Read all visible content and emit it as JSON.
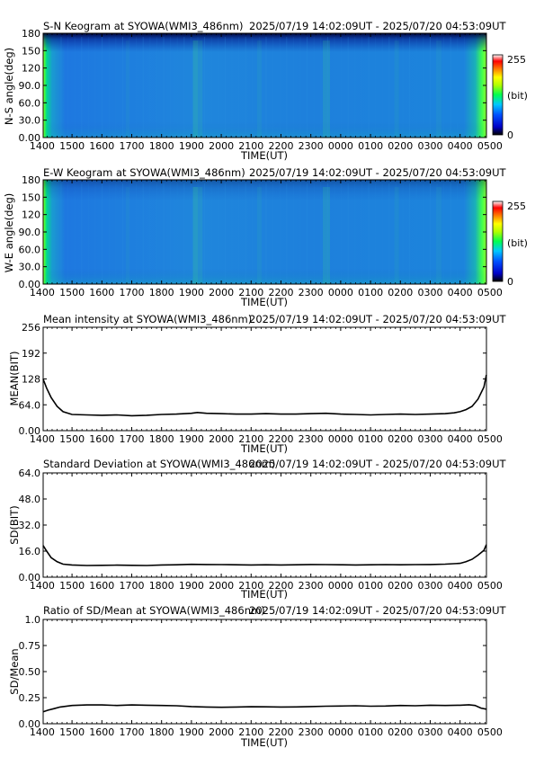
{
  "chart_data": [
    {
      "type": "heatmap",
      "title": "S-N Keogram at SYOWA(WMI3_486nm)",
      "time_range": "2025/07/19 14:02:09UT - 2025/07/20 04:53:09UT",
      "xlabel": "TIME(UT)",
      "ylabel": "N-S angle(deg)",
      "x_ticks": [
        "1400",
        "1500",
        "1600",
        "1700",
        "1800",
        "1900",
        "2000",
        "2100",
        "2200",
        "2300",
        "0000",
        "0100",
        "0200",
        "0300",
        "0400",
        "0500"
      ],
      "y_ticks": [
        "0.00",
        "30.0",
        "60.0",
        "90.0",
        "120",
        "150",
        "180"
      ],
      "ylim": [
        0,
        180
      ],
      "colorbar": {
        "min_label": "0",
        "max_label": "255",
        "unit_label": "(bit)"
      },
      "colors": [
        "#000000",
        "#0000c8",
        "#0040ff",
        "#00c0ff",
        "#00ff40",
        "#c0ff00",
        "#ffff00",
        "#ff8000",
        "#ff0000",
        "#ffffff"
      ]
    },
    {
      "type": "heatmap",
      "title": "E-W Keogram at SYOWA(WMI3_486nm)",
      "time_range": "2025/07/19 14:02:09UT - 2025/07/20 04:53:09UT",
      "xlabel": "TIME(UT)",
      "ylabel": "W-E angle(deg)",
      "x_ticks": [
        "1400",
        "1500",
        "1600",
        "1700",
        "1800",
        "1900",
        "2000",
        "2100",
        "2200",
        "2300",
        "0000",
        "0100",
        "0200",
        "0300",
        "0400",
        "0500"
      ],
      "y_ticks": [
        "0.00",
        "30.0",
        "60.0",
        "90.0",
        "120",
        "150",
        "180"
      ],
      "ylim": [
        0,
        180
      ],
      "colorbar": {
        "min_label": "0",
        "max_label": "255",
        "unit_label": "(bit)"
      }
    },
    {
      "type": "line",
      "title": "Mean intensity at SYOWA(WMI3_486nm)",
      "time_range": "2025/07/19 14:02:09UT - 2025/07/20 04:53:09UT",
      "xlabel": "TIME(UT)",
      "ylabel": "MEAN(BIT)",
      "x_ticks": [
        "1400",
        "1500",
        "1600",
        "1700",
        "1800",
        "1900",
        "2000",
        "2100",
        "2200",
        "2300",
        "0000",
        "0100",
        "0200",
        "0300",
        "0400",
        "0500"
      ],
      "y_ticks": [
        "0.00",
        "64.0",
        "128",
        "192",
        "256"
      ],
      "ylim": [
        0,
        256
      ],
      "xlim_hours": [
        14,
        29
      ],
      "x": [
        14.03,
        14.15,
        14.3,
        14.5,
        14.7,
        15.0,
        15.5,
        16.0,
        16.5,
        17.0,
        17.5,
        18.0,
        18.5,
        19.0,
        19.2,
        19.5,
        20.0,
        20.5,
        21.0,
        21.5,
        22.0,
        22.5,
        23.0,
        23.5,
        24.0,
        24.5,
        25.0,
        25.5,
        26.0,
        26.5,
        27.0,
        27.5,
        27.8,
        28.0,
        28.2,
        28.4,
        28.6,
        28.8,
        28.88
      ],
      "series": [
        {
          "values": [
            128,
            105,
            82,
            60,
            47,
            40,
            39,
            38,
            39,
            37,
            38,
            40,
            41,
            43,
            45,
            43,
            42,
            41,
            41,
            42,
            41,
            41,
            42,
            43,
            41,
            40,
            39,
            40,
            41,
            40,
            41,
            42,
            44,
            47,
            52,
            60,
            78,
            108,
            138
          ]
        }
      ]
    },
    {
      "type": "line",
      "title": "Standard Deviation at SYOWA(WMI3_486nm)",
      "time_range": "2025/07/19 14:02:09UT - 2025/07/20 04:53:09UT",
      "xlabel": "TIME(UT)",
      "ylabel": "SD(BIT)",
      "x_ticks": [
        "1400",
        "1500",
        "1600",
        "1700",
        "1800",
        "1900",
        "2000",
        "2100",
        "2200",
        "2300",
        "0000",
        "0100",
        "0200",
        "0300",
        "0400",
        "0500"
      ],
      "y_ticks": [
        "0.00",
        "16.0",
        "32.0",
        "48.0",
        "64.0"
      ],
      "ylim": [
        0,
        64
      ],
      "xlim_hours": [
        14,
        29
      ],
      "x": [
        14.03,
        14.15,
        14.3,
        14.5,
        14.7,
        15.0,
        15.5,
        16.0,
        16.5,
        17.0,
        17.5,
        18.0,
        18.5,
        19.0,
        19.5,
        20.0,
        20.5,
        21.0,
        21.5,
        22.0,
        22.5,
        23.0,
        23.5,
        24.0,
        24.5,
        25.0,
        25.5,
        26.0,
        26.5,
        27.0,
        27.5,
        28.0,
        28.2,
        28.4,
        28.6,
        28.8,
        28.88
      ],
      "series": [
        {
          "values": [
            19.5,
            16,
            12,
            9.5,
            8,
            7.5,
            7.2,
            7.3,
            7.4,
            7.3,
            7.2,
            7.5,
            7.6,
            7.9,
            7.8,
            7.7,
            7.6,
            7.5,
            7.6,
            7.5,
            7.6,
            7.8,
            7.7,
            7.6,
            7.5,
            7.6,
            7.7,
            7.6,
            7.7,
            7.8,
            8.0,
            8.5,
            9.5,
            11,
            13.5,
            16.5,
            20
          ]
        }
      ]
    },
    {
      "type": "line",
      "title": "Ratio of SD/Mean at SYOWA(WMI3_486nm)",
      "time_range": "2025/07/19 14:02:09UT - 2025/07/20 04:53:09UT",
      "xlabel": "TIME(UT)",
      "ylabel": "SD/Mean",
      "x_ticks": [
        "1400",
        "1500",
        "1600",
        "1700",
        "1800",
        "1900",
        "2000",
        "2100",
        "2200",
        "2300",
        "0000",
        "0100",
        "0200",
        "0300",
        "0400",
        "0500"
      ],
      "y_ticks": [
        "0.00",
        "0.25",
        "0.50",
        "0.75",
        "1.0"
      ],
      "ylim": [
        0,
        1
      ],
      "xlim_hours": [
        14,
        29
      ],
      "x": [
        14.03,
        14.2,
        14.4,
        14.6,
        15.0,
        15.5,
        16.0,
        16.5,
        17.0,
        17.5,
        18.0,
        18.5,
        19.0,
        19.5,
        20.0,
        20.5,
        21.0,
        21.5,
        22.0,
        22.5,
        23.0,
        23.5,
        24.0,
        24.5,
        25.0,
        25.5,
        26.0,
        26.5,
        27.0,
        27.5,
        28.0,
        28.3,
        28.5,
        28.7,
        28.88
      ],
      "series": [
        {
          "values": [
            0.115,
            0.13,
            0.145,
            0.16,
            0.175,
            0.18,
            0.18,
            0.175,
            0.18,
            0.178,
            0.175,
            0.172,
            0.165,
            0.16,
            0.158,
            0.16,
            0.163,
            0.162,
            0.16,
            0.161,
            0.165,
            0.168,
            0.17,
            0.172,
            0.168,
            0.17,
            0.175,
            0.172,
            0.178,
            0.175,
            0.178,
            0.182,
            0.175,
            0.15,
            0.14
          ]
        }
      ]
    }
  ]
}
